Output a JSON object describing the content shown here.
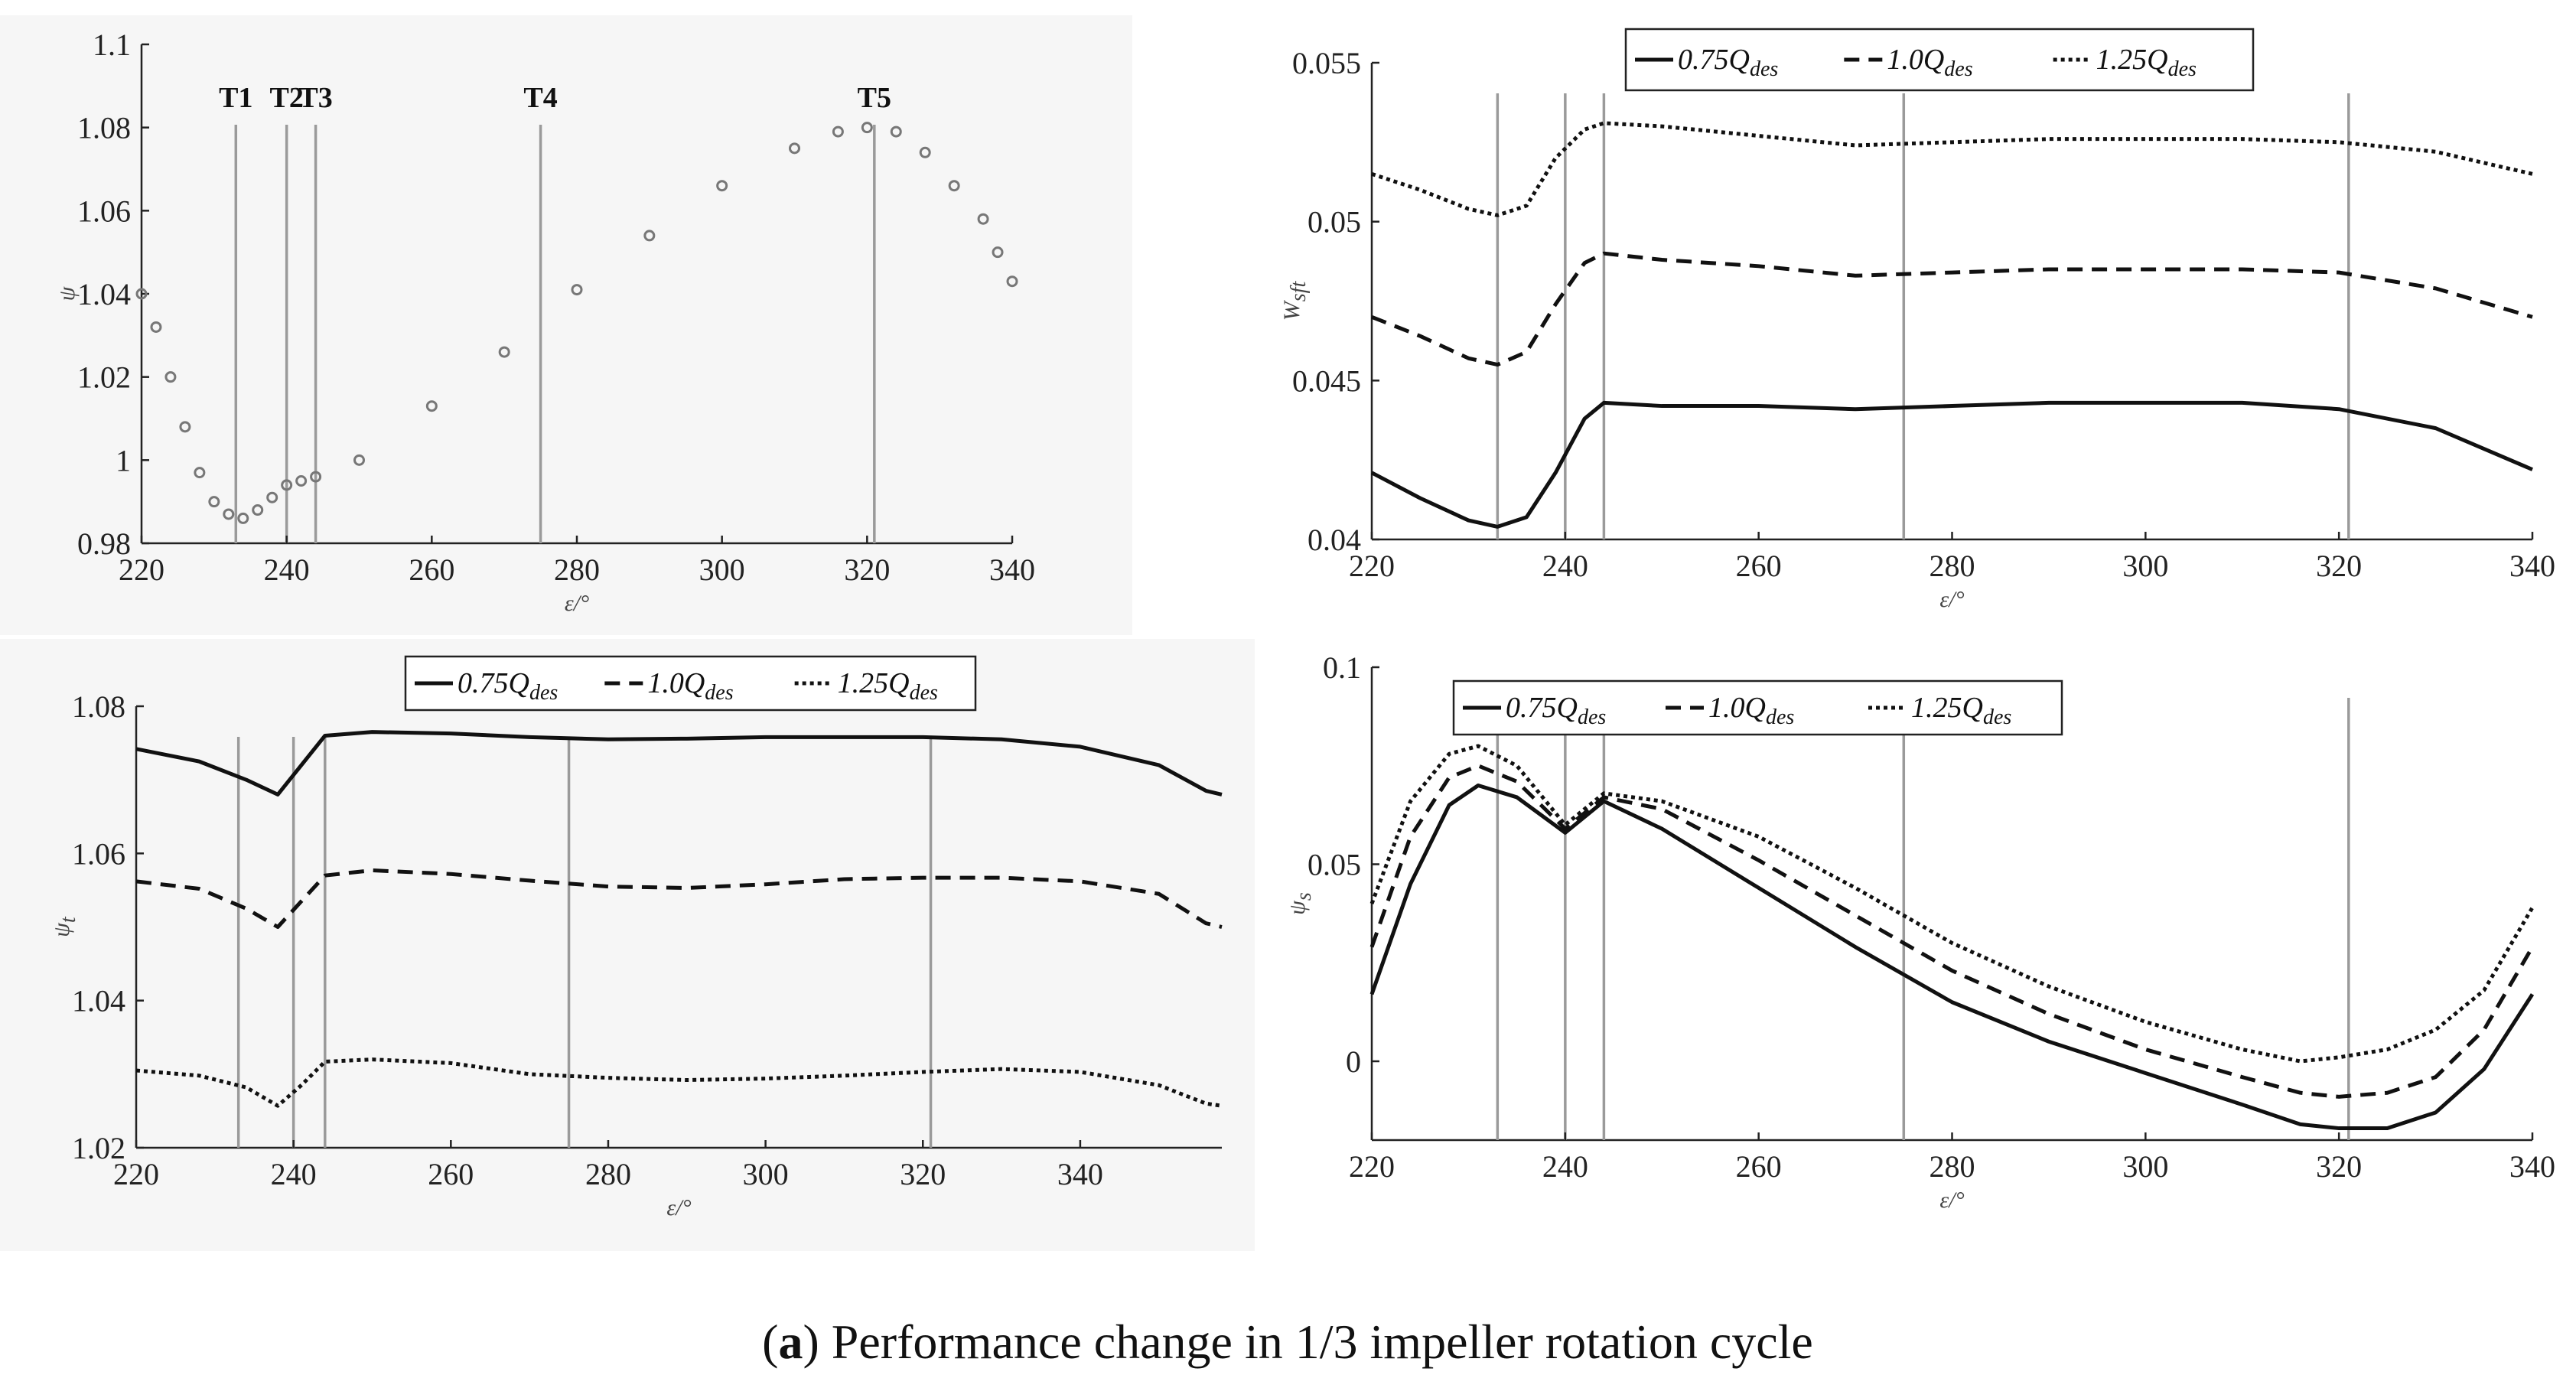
{
  "caption": {
    "prefix": "(",
    "letter": "a",
    "suffix": ") Performance change in 1/3 impeller rotation cycle"
  },
  "legend_entries": [
    {
      "coef": "0.75",
      "q": "Q",
      "sub": "des",
      "dash": "solid"
    },
    {
      "coef": "1.0",
      "q": "Q",
      "sub": "des",
      "dash": "dashed"
    },
    {
      "coef": "1.25",
      "q": "Q",
      "sub": "des",
      "dash": "dotted"
    }
  ],
  "chart_data": [
    {
      "id": "top-left",
      "type": "scatter",
      "xlabel": "ε/°",
      "ylabel": "ψ",
      "xlim": [
        220,
        340
      ],
      "ylim": [
        0.98,
        1.1
      ],
      "xticks": [
        "220",
        "240",
        "260",
        "280",
        "300",
        "320",
        "340"
      ],
      "yticks": [
        "0.98",
        "1",
        "1.02",
        "1.04",
        "1.06",
        "1.08",
        "1.1"
      ],
      "markers": [
        {
          "label": "T1",
          "x": 233
        },
        {
          "label": "T2",
          "x": 240
        },
        {
          "label": "T3",
          "x": 244
        },
        {
          "label": "T4",
          "x": 275
        },
        {
          "label": "T5",
          "x": 321
        }
      ],
      "series": [
        {
          "name": "ψ",
          "x": [
            220,
            222,
            224,
            226,
            228,
            230,
            232,
            234,
            236,
            238,
            240,
            242,
            244,
            250,
            260,
            270,
            280,
            290,
            300,
            310,
            316,
            320,
            324,
            328,
            332,
            336,
            338,
            340
          ],
          "values": [
            1.04,
            1.032,
            1.02,
            1.008,
            0.997,
            0.99,
            0.987,
            0.986,
            0.988,
            0.991,
            0.994,
            0.995,
            0.996,
            1.0,
            1.013,
            1.026,
            1.041,
            1.054,
            1.066,
            1.075,
            1.079,
            1.08,
            1.079,
            1.074,
            1.066,
            1.058,
            1.05,
            1.043
          ]
        }
      ]
    },
    {
      "id": "top-right",
      "type": "line",
      "xlabel": "ε/°",
      "ylabel": "W",
      "ylabel_sub": "sft",
      "xlim": [
        220,
        340
      ],
      "ylim": [
        0.04,
        0.055
      ],
      "xticks": [
        "220",
        "240",
        "260",
        "280",
        "300",
        "320",
        "340"
      ],
      "yticks": [
        "0.04",
        "0.045",
        "0.05",
        "0.055"
      ],
      "markers_x": [
        233,
        240,
        244,
        275,
        321
      ],
      "series": [
        {
          "name": "0.75Qdes",
          "x": [
            220,
            225,
            230,
            233,
            236,
            239,
            242,
            244,
            250,
            260,
            270,
            280,
            290,
            300,
            310,
            320,
            330,
            340
          ],
          "values": [
            0.0421,
            0.0413,
            0.0406,
            0.0404,
            0.0407,
            0.0421,
            0.0438,
            0.0443,
            0.0442,
            0.0442,
            0.0441,
            0.0442,
            0.0443,
            0.0443,
            0.0443,
            0.0441,
            0.0435,
            0.0422
          ]
        },
        {
          "name": "1.0Qdes",
          "x": [
            220,
            225,
            230,
            233,
            236,
            239,
            242,
            244,
            250,
            260,
            270,
            280,
            290,
            300,
            310,
            320,
            330,
            340
          ],
          "values": [
            0.047,
            0.0464,
            0.0457,
            0.0455,
            0.0459,
            0.0474,
            0.0487,
            0.049,
            0.0488,
            0.0486,
            0.0483,
            0.0484,
            0.0485,
            0.0485,
            0.0485,
            0.0484,
            0.0479,
            0.047
          ]
        },
        {
          "name": "1.25Qdes",
          "x": [
            220,
            225,
            230,
            233,
            236,
            239,
            242,
            244,
            250,
            260,
            270,
            280,
            290,
            300,
            310,
            320,
            330,
            340
          ],
          "values": [
            0.0515,
            0.051,
            0.0504,
            0.0502,
            0.0505,
            0.052,
            0.0529,
            0.0531,
            0.053,
            0.0527,
            0.0524,
            0.0525,
            0.0526,
            0.0526,
            0.0526,
            0.0525,
            0.0522,
            0.0515
          ]
        }
      ]
    },
    {
      "id": "bottom-left",
      "type": "line",
      "xlabel": "ε/°",
      "ylabel": "ψ",
      "ylabel_sub": "t",
      "xlim": [
        220,
        358
      ],
      "ylim": [
        1.02,
        1.08
      ],
      "xticks": [
        "220",
        "240",
        "260",
        "280",
        "300",
        "320",
        "340"
      ],
      "yticks": [
        "1.02",
        "1.04",
        "1.06",
        "1.08"
      ],
      "markers_x": [
        233,
        240,
        244,
        275,
        321
      ],
      "series": [
        {
          "name": "0.75Qdes",
          "x": [
            220,
            228,
            234,
            238,
            241,
            244,
            250,
            260,
            270,
            280,
            290,
            300,
            310,
            320,
            330,
            340,
            350,
            356,
            358
          ],
          "values": [
            1.0742,
            1.0725,
            1.07,
            1.068,
            1.072,
            1.076,
            1.0765,
            1.0763,
            1.0758,
            1.0755,
            1.0756,
            1.0758,
            1.0758,
            1.0758,
            1.0755,
            1.0745,
            1.072,
            1.0685,
            1.068
          ]
        },
        {
          "name": "1.0Qdes",
          "x": [
            220,
            228,
            234,
            238,
            241,
            244,
            250,
            260,
            270,
            280,
            290,
            300,
            310,
            320,
            330,
            340,
            350,
            356,
            358
          ],
          "values": [
            1.0562,
            1.0552,
            1.0525,
            1.05,
            1.0535,
            1.057,
            1.0577,
            1.0572,
            1.0563,
            1.0555,
            1.0553,
            1.0558,
            1.0565,
            1.0567,
            1.0567,
            1.0562,
            1.0545,
            1.0505,
            1.05
          ]
        },
        {
          "name": "1.25Qdes",
          "x": [
            220,
            228,
            234,
            238,
            241,
            244,
            250,
            260,
            270,
            280,
            290,
            300,
            310,
            320,
            330,
            340,
            350,
            356,
            358
          ],
          "values": [
            1.0305,
            1.0298,
            1.0282,
            1.0257,
            1.0285,
            1.0317,
            1.032,
            1.0315,
            1.03,
            1.0295,
            1.0292,
            1.0294,
            1.0298,
            1.0303,
            1.0307,
            1.0303,
            1.0285,
            1.026,
            1.0257
          ]
        }
      ]
    },
    {
      "id": "bottom-right",
      "type": "line",
      "xlabel": "ε/°",
      "ylabel": "ψ",
      "ylabel_sub": "s",
      "xlim": [
        220,
        340
      ],
      "ylim": [
        -0.02,
        0.1
      ],
      "xticks": [
        "220",
        "240",
        "260",
        "280",
        "300",
        "320",
        "340"
      ],
      "yticks": [
        "0",
        "0.05",
        "0.1"
      ],
      "markers_x": [
        233,
        240,
        244,
        275,
        321
      ],
      "series": [
        {
          "name": "0.75Qdes",
          "x": [
            220,
            224,
            228,
            231,
            235,
            240,
            244,
            250,
            260,
            270,
            280,
            290,
            300,
            310,
            316,
            320,
            325,
            330,
            335,
            340
          ],
          "values": [
            0.017,
            0.045,
            0.065,
            0.07,
            0.067,
            0.058,
            0.066,
            0.059,
            0.044,
            0.029,
            0.015,
            0.005,
            -0.003,
            -0.011,
            -0.016,
            -0.017,
            -0.017,
            -0.013,
            -0.002,
            0.017
          ]
        },
        {
          "name": "1.0Qdes",
          "x": [
            220,
            224,
            228,
            231,
            235,
            240,
            244,
            250,
            260,
            270,
            280,
            290,
            300,
            310,
            316,
            320,
            325,
            330,
            335,
            340
          ],
          "values": [
            0.029,
            0.057,
            0.072,
            0.075,
            0.071,
            0.059,
            0.067,
            0.064,
            0.051,
            0.037,
            0.023,
            0.012,
            0.003,
            -0.004,
            -0.008,
            -0.009,
            -0.008,
            -0.004,
            0.008,
            0.029
          ]
        },
        {
          "name": "1.25Qdes",
          "x": [
            220,
            224,
            228,
            231,
            235,
            240,
            244,
            250,
            260,
            270,
            280,
            290,
            300,
            310,
            316,
            320,
            325,
            330,
            335,
            340
          ],
          "values": [
            0.04,
            0.066,
            0.078,
            0.08,
            0.075,
            0.06,
            0.068,
            0.066,
            0.057,
            0.044,
            0.03,
            0.019,
            0.01,
            0.003,
            0.0,
            0.001,
            0.003,
            0.008,
            0.018,
            0.039
          ]
        }
      ]
    }
  ]
}
